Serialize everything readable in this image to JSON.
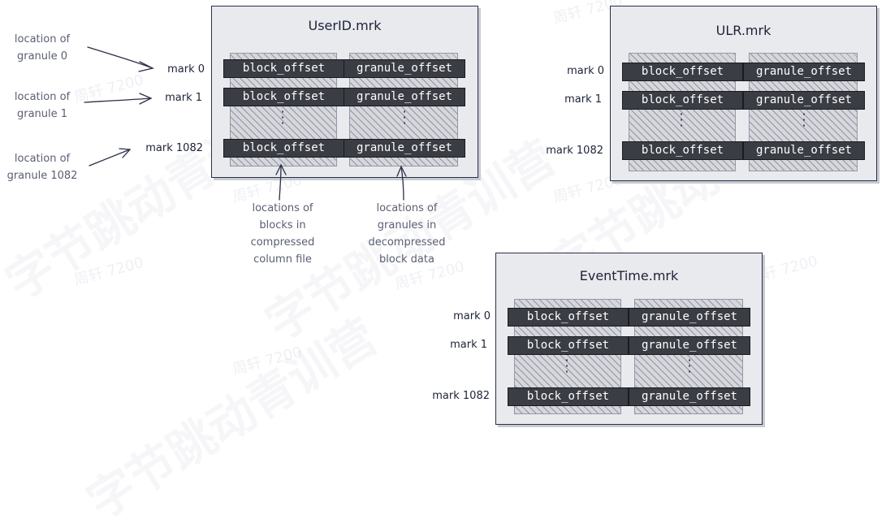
{
  "files": [
    {
      "title": "UserID.mrk",
      "marks": [
        "mark 0",
        "mark 1",
        "mark 1082"
      ],
      "columns": [
        "block_offset",
        "granule_offset"
      ]
    },
    {
      "title": "ULR.mrk",
      "marks": [
        "mark 0",
        "mark 1",
        "mark 1082"
      ],
      "columns": [
        "block_offset",
        "granule_offset"
      ]
    },
    {
      "title": "EventTime.mrk",
      "marks": [
        "mark 0",
        "mark 1",
        "mark 1082"
      ],
      "columns": [
        "block_offset",
        "granule_offset"
      ]
    }
  ],
  "left_annotations": [
    "location of\ngranule 0",
    "location of\ngranule 1",
    "location of\ngranule 1082"
  ],
  "bottom_annotations": [
    "locations of\nblocks in\ncompressed\ncolumn file",
    "locations of\ngranules in\ndecompressed\nblock data"
  ],
  "watermark": {
    "large_text": "字节跳动青训营",
    "small_text": "周轩 7200"
  }
}
